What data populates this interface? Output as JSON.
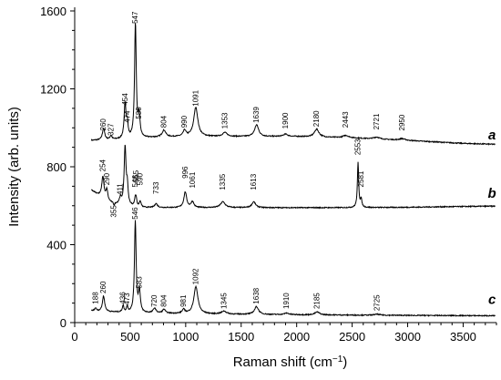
{
  "chart_data": {
    "type": "line",
    "xlabel_main": "Raman shift (cm",
    "xlabel_sup": "−1",
    "xlabel_end": ")",
    "ylabel": "Intensity (arb. units)",
    "xlim": [
      0,
      3800
    ],
    "ylim": [
      0,
      1600
    ],
    "x_ticks": [
      0,
      500,
      1000,
      1500,
      2000,
      2500,
      3000,
      3500
    ],
    "y_ticks": [
      0,
      400,
      800,
      1200,
      1600
    ],
    "grid": false,
    "series": [
      {
        "name": "a",
        "baseline": [
          [
            150,
            935
          ],
          [
            400,
            940
          ],
          [
            700,
            950
          ],
          [
            1000,
            955
          ],
          [
            1500,
            955
          ],
          [
            2000,
            955
          ],
          [
            2500,
            948
          ],
          [
            3000,
            935
          ],
          [
            3500,
            920
          ],
          [
            3800,
            915
          ]
        ],
        "peaks": [
          [
            260,
            60,
            12
          ],
          [
            327,
            20,
            10
          ],
          [
            454,
            180,
            10
          ],
          [
            474,
            70,
            8
          ],
          [
            547,
            590,
            9
          ],
          [
            580,
            110,
            10
          ],
          [
            804,
            35,
            20
          ],
          [
            990,
            30,
            15
          ],
          [
            1091,
            150,
            22
          ],
          [
            1353,
            20,
            25
          ],
          [
            1639,
            60,
            22
          ],
          [
            1900,
            12,
            25
          ],
          [
            2180,
            40,
            25
          ],
          [
            2443,
            12,
            30
          ],
          [
            2721,
            10,
            30
          ],
          [
            2950,
            8,
            30
          ]
        ],
        "peak_labels": [
          {
            "text": "260",
            "x": 260,
            "y": 985
          },
          {
            "text": "327",
            "x": 327,
            "y": 960
          },
          {
            "text": "454",
            "x": 454,
            "y": 1115
          },
          {
            "text": "474",
            "x": 474,
            "y": 1025
          },
          {
            "text": "547",
            "x": 547,
            "y": 1535
          },
          {
            "text": "580",
            "x": 580,
            "y": 1045
          },
          {
            "text": "804",
            "x": 804,
            "y": 1000
          },
          {
            "text": "990",
            "x": 990,
            "y": 1000
          },
          {
            "text": "1091",
            "x": 1091,
            "y": 1110
          },
          {
            "text": "1353",
            "x": 1353,
            "y": 995
          },
          {
            "text": "1639",
            "x": 1639,
            "y": 1025
          },
          {
            "text": "1900",
            "x": 1900,
            "y": 995
          },
          {
            "text": "2180",
            "x": 2180,
            "y": 1005
          },
          {
            "text": "2443",
            "x": 2443,
            "y": 1000
          },
          {
            "text": "2721",
            "x": 2721,
            "y": 990
          },
          {
            "text": "2950",
            "x": 2950,
            "y": 985
          }
        ]
      },
      {
        "name": "b",
        "baseline": [
          [
            150,
            680
          ],
          [
            300,
            620
          ],
          [
            400,
            605
          ],
          [
            600,
            590
          ],
          [
            1000,
            590
          ],
          [
            1500,
            590
          ],
          [
            2000,
            590
          ],
          [
            2500,
            590
          ],
          [
            3000,
            592
          ],
          [
            3500,
            596
          ],
          [
            3800,
            598
          ]
        ],
        "peaks": [
          [
            254,
            110,
            12
          ],
          [
            290,
            55,
            10
          ],
          [
            355,
            -15,
            8
          ],
          [
            411,
            30,
            12
          ],
          [
            454,
            300,
            10
          ],
          [
            474,
            90,
            8
          ],
          [
            546,
            45,
            8
          ],
          [
            555,
            30,
            6
          ],
          [
            590,
            30,
            10
          ],
          [
            733,
            20,
            15
          ],
          [
            996,
            80,
            15
          ],
          [
            1061,
            30,
            15
          ],
          [
            1335,
            30,
            25
          ],
          [
            1613,
            30,
            20
          ],
          [
            2553,
            230,
            7
          ],
          [
            2581,
            40,
            8
          ]
        ],
        "peak_labels": [
          {
            "text": "254",
            "x": 254,
            "y": 775
          },
          {
            "text": "290",
            "x": 290,
            "y": 705
          },
          {
            "text": "355",
            "x": 355,
            "y": 540
          },
          {
            "text": "411",
            "x": 411,
            "y": 655
          },
          {
            "text": "546",
            "x": 546,
            "y": 695
          },
          {
            "text": "555",
            "x": 555,
            "y": 720
          },
          {
            "text": "590",
            "x": 590,
            "y": 705
          },
          {
            "text": "733",
            "x": 733,
            "y": 660
          },
          {
            "text": "996",
            "x": 996,
            "y": 740
          },
          {
            "text": "1061",
            "x": 1061,
            "y": 690
          },
          {
            "text": "1335",
            "x": 1335,
            "y": 680
          },
          {
            "text": "1613",
            "x": 1613,
            "y": 680
          },
          {
            "text": "2553",
            "x": 2553,
            "y": 860
          },
          {
            "text": "2581",
            "x": 2581,
            "y": 695
          }
        ]
      },
      {
        "name": "c",
        "baseline": [
          [
            150,
            60
          ],
          [
            300,
            55
          ],
          [
            500,
            50
          ],
          [
            1000,
            45
          ],
          [
            2000,
            40
          ],
          [
            3000,
            37
          ],
          [
            3800,
            35
          ]
        ],
        "peaks": [
          [
            188,
            15,
            10
          ],
          [
            260,
            80,
            12
          ],
          [
            436,
            35,
            8
          ],
          [
            473,
            30,
            8
          ],
          [
            546,
            470,
            9
          ],
          [
            583,
            110,
            10
          ],
          [
            720,
            25,
            15
          ],
          [
            804,
            20,
            15
          ],
          [
            981,
            20,
            15
          ],
          [
            1092,
            140,
            22
          ],
          [
            1345,
            15,
            25
          ],
          [
            1638,
            40,
            22
          ],
          [
            1910,
            8,
            25
          ],
          [
            2185,
            15,
            25
          ],
          [
            2725,
            5,
            30
          ]
        ],
        "peak_labels": [
          {
            "text": "188",
            "x": 188,
            "y": 95
          },
          {
            "text": "260",
            "x": 260,
            "y": 150
          },
          {
            "text": "436",
            "x": 436,
            "y": 95
          },
          {
            "text": "473",
            "x": 473,
            "y": 90
          },
          {
            "text": "546",
            "x": 546,
            "y": 530
          },
          {
            "text": "583",
            "x": 583,
            "y": 175
          },
          {
            "text": "720",
            "x": 720,
            "y": 80
          },
          {
            "text": "804",
            "x": 804,
            "y": 80
          },
          {
            "text": "981",
            "x": 981,
            "y": 80
          },
          {
            "text": "1092",
            "x": 1092,
            "y": 195
          },
          {
            "text": "1345",
            "x": 1345,
            "y": 70
          },
          {
            "text": "1638",
            "x": 1638,
            "y": 95
          },
          {
            "text": "1910",
            "x": 1910,
            "y": 70
          },
          {
            "text": "2185",
            "x": 2185,
            "y": 70
          },
          {
            "text": "2725",
            "x": 2725,
            "y": 60
          }
        ]
      }
    ],
    "series_letters": [
      {
        "text": "a",
        "x": 3760,
        "y": 940
      },
      {
        "text": "b",
        "x": 3760,
        "y": 640
      },
      {
        "text": "c",
        "x": 3760,
        "y": 95
      }
    ]
  }
}
